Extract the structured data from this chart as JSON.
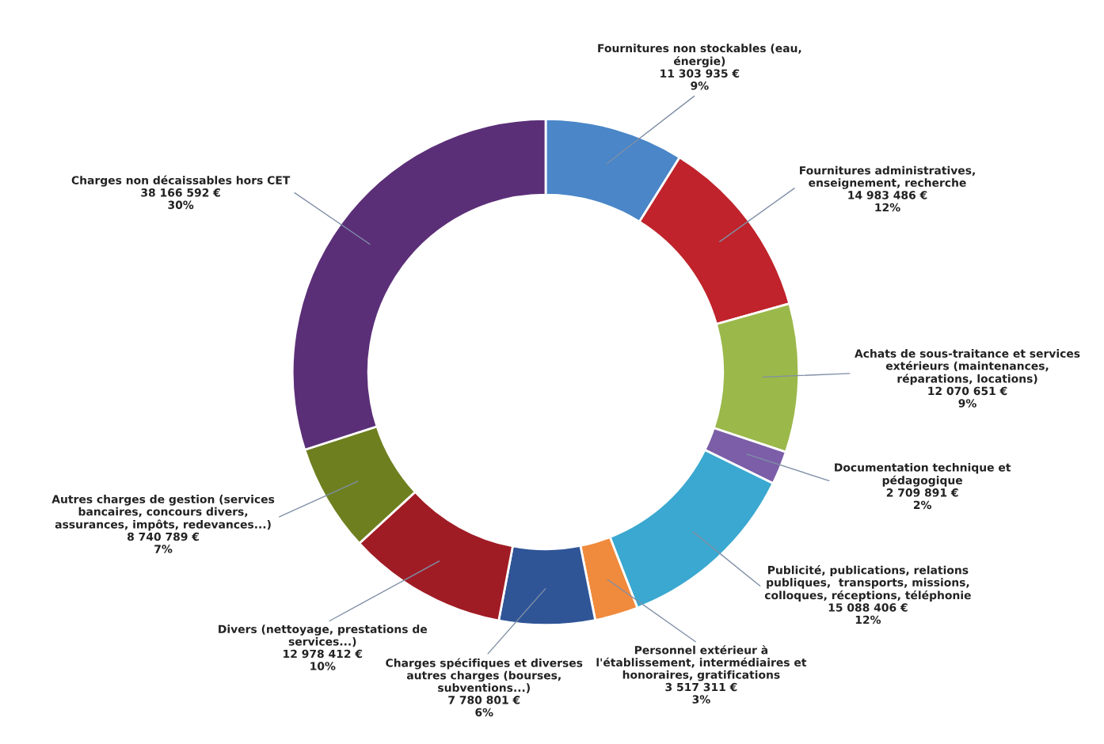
{
  "chart_data": {
    "type": "donut",
    "categories": [
      "Fournitures non stockables (eau, énergie)",
      "Fournitures administratives, enseignement, recherche",
      "Achats de sous-traitance et services extérieurs (maintenances, réparations, locations)",
      "Documentation technique et pédagogique",
      "Publicité, publications, relations publiques,  transports, missions, colloques, réceptions, téléphonie",
      "Personnel extérieur à l'établissement, intermédiaires et honoraires, gratifications",
      "Charges spécifiques et diverses autres charges (bourses, subventions...)",
      "Divers (nettoyage, prestations de services...)",
      "Autres charges de gestion (services bancaires, concours divers, assurances, impôts, redevances...)",
      "Charges non décaissables hors CET"
    ],
    "values": [
      11303935,
      14983486,
      12070651,
      2709891,
      15088406,
      3517311,
      7780801,
      12978412,
      8740789,
      38166592
    ],
    "value_labels": [
      "11 303 935 €\n9%",
      "14 983 486 €\n12%",
      "12 070 651 €\n9%",
      "2 709 891 €\n2%",
      "15 088 406 €\n12%",
      "3 517 311 €\n3%",
      "7 780 801 €\n6%",
      "12 978 412 €\n10%",
      "8 740 789 €\n7%",
      "38 166 592 €\n30%"
    ],
    "colors": [
      "#4a86c8",
      "#c0232b",
      "#9bb84a",
      "#7b5ea7",
      "#3aa8d0",
      "#f08a3c",
      "#2f5597",
      "#a01c25",
      "#6e7f1f",
      "#5b2f78"
    ],
    "legend": false
  }
}
